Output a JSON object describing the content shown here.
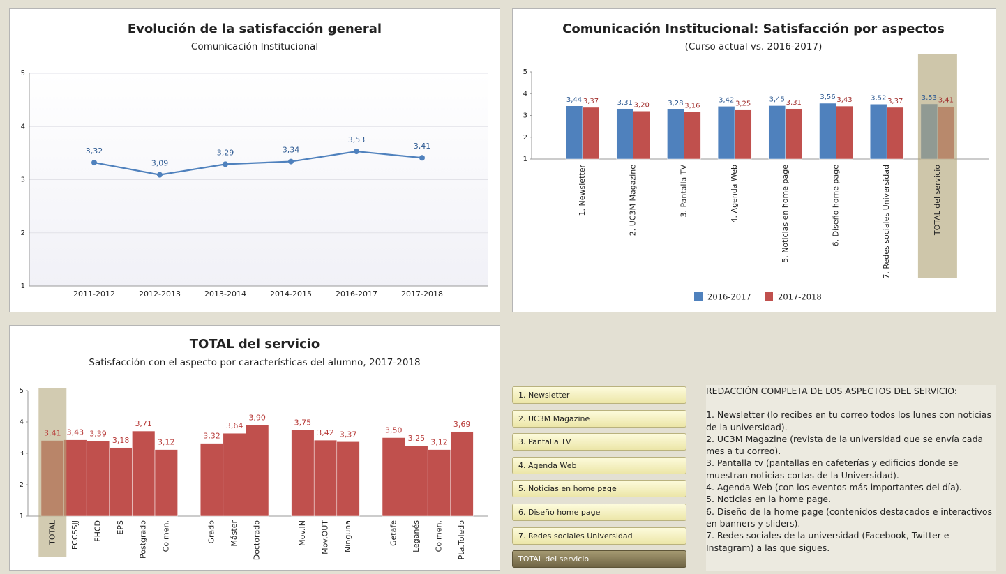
{
  "chart_data": [
    {
      "type": "line",
      "title": "Evolución de la satisfacción general",
      "subtitle": "Comunicación Institucional",
      "categories": [
        "2011-2012",
        "2012-2013",
        "2013-2014",
        "2014-2015",
        "2016-2017",
        "2017-2018"
      ],
      "values": [
        3.32,
        3.09,
        3.29,
        3.34,
        3.53,
        3.41
      ],
      "value_labels": [
        "3,32",
        "3,09",
        "3,29",
        "3,34",
        "3,53",
        "3,41"
      ],
      "color": "#4f81bd",
      "ylim": [
        1,
        5
      ],
      "yticks": [
        1,
        2,
        3,
        4,
        5
      ],
      "grid": true
    },
    {
      "type": "grouped-bar",
      "title": "Comunicación Institucional: Satisfacción por aspectos",
      "subtitle": "(Curso actual vs. 2016-2017)",
      "categories": [
        "1. Newsletter",
        "2. UC3M Magazine",
        "3. Pantalla TV",
        "4. Agenda Web",
        "5. Noticias en home page",
        "6. Diseño home page",
        "7. Redes sociales Universidad",
        "TOTAL del servicio"
      ],
      "series": [
        {
          "name": "2016-2017",
          "color": "#4f81bd",
          "values": [
            3.44,
            3.31,
            3.28,
            3.42,
            3.45,
            3.56,
            3.52,
            3.53
          ],
          "value_labels": [
            "3,44",
            "3,31",
            "3,28",
            "3,42",
            "3,45",
            "3,56",
            "3,52",
            "3,53"
          ]
        },
        {
          "name": "2017-2018",
          "color": "#c0504d",
          "values": [
            3.37,
            3.2,
            3.16,
            3.25,
            3.31,
            3.43,
            3.37,
            3.41
          ],
          "value_labels": [
            "3,37",
            "3,20",
            "3,16",
            "3,25",
            "3,31",
            "3,43",
            "3,37",
            "3,41"
          ]
        }
      ],
      "ylim": [
        1,
        5
      ],
      "yticks": [
        1,
        2,
        3,
        4,
        5
      ],
      "grid": false
    },
    {
      "type": "bar",
      "title": "TOTAL del servicio",
      "subtitle": "Satisfacción con el aspecto por características del alumno, 2017-2018",
      "categories": [
        "TOTAL",
        "FCCSSJJ",
        "FHCD",
        "EPS",
        "Postgrado",
        "Colmen.",
        null,
        "Grado",
        "Máster",
        "Doctorado",
        null,
        "Mov.IN",
        "Mov.OUT",
        "Ninguna",
        null,
        "Getafe",
        "Leganés",
        "Colmen.",
        "Pta.Toledo"
      ],
      "values": [
        3.41,
        3.43,
        3.39,
        3.18,
        3.71,
        3.12,
        null,
        3.32,
        3.64,
        3.9,
        null,
        3.75,
        3.42,
        3.37,
        null,
        3.5,
        3.25,
        3.12,
        3.69
      ],
      "value_labels": [
        "3,41",
        "3,43",
        "3,39",
        "3,18",
        "3,71",
        "3,12",
        null,
        "3,32",
        "3,64",
        "3,90",
        null,
        "3,75",
        "3,42",
        "3,37",
        null,
        "3,50",
        "3,25",
        "3,12",
        "3,69"
      ],
      "color": "#c0504d",
      "ylim": [
        1,
        5
      ],
      "yticks": [
        1,
        2,
        3,
        4,
        5
      ],
      "grid": false
    }
  ],
  "buttons": [
    "1. Newsletter",
    "2. UC3M Magazine",
    "3. Pantalla TV",
    "4. Agenda Web",
    "5. Noticias en home page",
    "6. Diseño home page",
    "7. Redes sociales Universidad",
    "TOTAL del servicio"
  ],
  "description": {
    "title": "REDACCIÓN COMPLETA DE LOS ASPECTOS DEL SERVICIO:",
    "items": [
      "1. Newsletter (lo recibes en tu correo todos los lunes con noticias de la universidad).",
      "2. UC3M Magazine (revista de la universidad que se envía cada mes a tu correo).",
      "3. Pantalla tv (pantallas en cafeterías y edificios donde se muestran noticias cortas de la Universidad).",
      "4. Agenda Web (con los eventos más importantes del día).",
      "5. Noticias en la home page.",
      "6. Diseño de la home page (contenidos destacados e interactivos en banners y sliders).",
      "7. Redes sociales de la universidad (Facebook, Twitter e Instagram) a las que sigues."
    ]
  }
}
